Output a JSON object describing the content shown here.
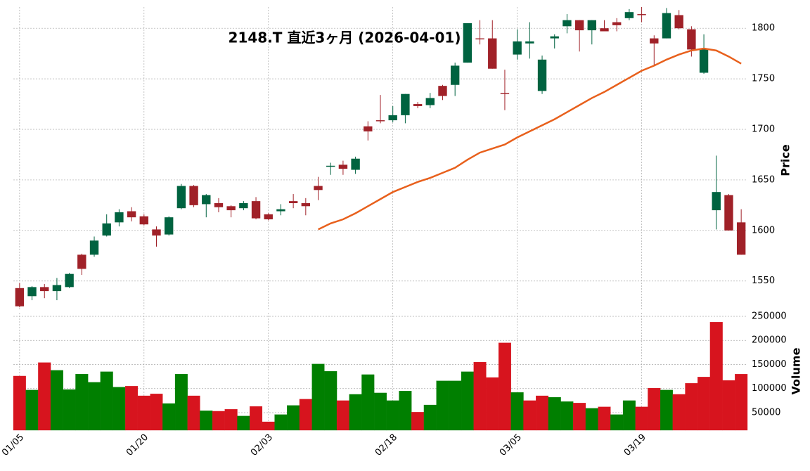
{
  "chart_data": {
    "type": "candlestick",
    "title": "2148.T 直近3ヶ月 (2026-04-01)",
    "ylabel": "Price",
    "categories": [
      "01/05",
      null,
      null,
      null,
      null,
      null,
      null,
      null,
      null,
      null,
      "01/20",
      null,
      null,
      null,
      null,
      null,
      null,
      null,
      null,
      null,
      "02/03",
      null,
      null,
      null,
      null,
      null,
      null,
      null,
      null,
      null,
      "02/18",
      null,
      null,
      null,
      null,
      null,
      null,
      null,
      null,
      null,
      "03/05",
      null,
      null,
      null,
      null,
      null,
      null,
      null,
      null,
      null,
      "03/19",
      null,
      null,
      null,
      null,
      null,
      null,
      null,
      null
    ],
    "open": [
      1543,
      1535,
      1544,
      1540,
      1544,
      1576,
      1576,
      1595,
      1608,
      1619,
      1614,
      1601,
      1596,
      1622,
      1644,
      1626,
      1627,
      1624,
      1622,
      1629,
      1616,
      1619,
      1629,
      1627,
      1644,
      1663,
      1665,
      1660,
      1703,
      1709,
      1709,
      1714,
      1725,
      1724,
      1743,
      1744,
      1766,
      1790,
      1790,
      1736,
      1774,
      1785,
      1738,
      1790,
      1802,
      1808,
      1798,
      1800,
      1806,
      1810,
      1814,
      1790,
      1790,
      1813,
      1799,
      1756,
      1620,
      1635,
      1608
    ],
    "high": [
      1548,
      1545,
      1547,
      1553,
      1558,
      1577,
      1594,
      1616,
      1621,
      1623,
      1616,
      1604,
      1614,
      1646,
      1645,
      1636,
      1632,
      1625,
      1629,
      1633,
      1617,
      1626,
      1636,
      1632,
      1653,
      1667,
      1669,
      1673,
      1708,
      1734,
      1723,
      1735,
      1727,
      1736,
      1744,
      1766,
      1805,
      1808,
      1808,
      1759,
      1799,
      1806,
      1773,
      1794,
      1814,
      1808,
      1808,
      1808,
      1810,
      1819,
      1821,
      1793,
      1820,
      1818,
      1802,
      1794,
      1674,
      1636,
      1621
    ],
    "low": [
      1524,
      1531,
      1533,
      1531,
      1543,
      1556,
      1574,
      1594,
      1604,
      1609,
      1605,
      1584,
      1595,
      1621,
      1623,
      1613,
      1618,
      1613,
      1620,
      1611,
      1610,
      1615,
      1622,
      1615,
      1630,
      1655,
      1655,
      1656,
      1689,
      1706,
      1707,
      1706,
      1721,
      1721,
      1729,
      1733,
      1766,
      1784,
      1760,
      1719,
      1769,
      1770,
      1735,
      1780,
      1795,
      1777,
      1784,
      1797,
      1797,
      1808,
      1806,
      1764,
      1790,
      1799,
      1772,
      1755,
      1601,
      1600,
      1576
    ],
    "close": [
      1525,
      1544,
      1540,
      1546,
      1557,
      1562,
      1590,
      1607,
      1618,
      1613,
      1606,
      1595,
      1613,
      1644,
      1625,
      1635,
      1623,
      1620,
      1627,
      1612,
      1611,
      1621,
      1627,
      1624,
      1640,
      1664,
      1661,
      1671,
      1698,
      1708,
      1714,
      1735,
      1723,
      1731,
      1733,
      1763,
      1805,
      1789,
      1760,
      1735,
      1787,
      1787,
      1769,
      1792,
      1808,
      1798,
      1808,
      1797,
      1803,
      1816,
      1813,
      1785,
      1815,
      1800,
      1779,
      1779,
      1638,
      1600,
      1576
    ],
    "up_color": "#006340",
    "down_color": "#a02128",
    "ma": {
      "color": "#e8601c",
      "values": [
        null,
        null,
        null,
        null,
        null,
        null,
        null,
        null,
        null,
        null,
        null,
        null,
        null,
        null,
        null,
        null,
        null,
        null,
        null,
        null,
        null,
        null,
        null,
        null,
        1601,
        1607,
        1611,
        1617,
        1624,
        1631,
        1638,
        1643,
        1648,
        1652,
        1657,
        1662,
        1670,
        1677,
        1681,
        1685,
        1692,
        1698,
        1704,
        1710,
        1717,
        1724,
        1731,
        1737,
        1744,
        1751,
        1758,
        1763,
        1769,
        1774,
        1778,
        1780,
        1778,
        1772,
        1765
      ]
    },
    "ylim": [
      1522,
      1821
    ],
    "yticks": [
      1550,
      1600,
      1650,
      1700,
      1750,
      1800
    ],
    "grid": true,
    "volume": {
      "ylabel": "Volume",
      "ylim": [
        13500,
        250000
      ],
      "yticks": [
        50000,
        100000,
        150000,
        200000,
        250000
      ],
      "values": [
        126000,
        97000,
        154000,
        138000,
        98000,
        130000,
        113000,
        135000,
        103000,
        105000,
        85000,
        89000,
        69000,
        130000,
        85000,
        54000,
        53000,
        57000,
        43000,
        63000,
        31000,
        46000,
        65000,
        78000,
        151000,
        136000,
        75000,
        88000,
        129000,
        91000,
        75000,
        95000,
        51000,
        66000,
        116000,
        116000,
        135000,
        155000,
        123000,
        195000,
        92000,
        75000,
        85000,
        82000,
        73000,
        70000,
        59000,
        62000,
        46000,
        75000,
        62000,
        101000,
        97000,
        88000,
        111000,
        124000,
        238000,
        117000,
        130000
      ],
      "colors": [
        "#d7141e",
        "#007f00",
        "#d7141e",
        "#007f00",
        "#007f00",
        "#007f00",
        "#007f00",
        "#007f00",
        "#007f00",
        "#d7141e",
        "#d7141e",
        "#d7141e",
        "#007f00",
        "#007f00",
        "#d7141e",
        "#007f00",
        "#d7141e",
        "#d7141e",
        "#007f00",
        "#d7141e",
        "#d7141e",
        "#007f00",
        "#007f00",
        "#d7141e",
        "#007f00",
        "#007f00",
        "#d7141e",
        "#007f00",
        "#007f00",
        "#007f00",
        "#007f00",
        "#007f00",
        "#d7141e",
        "#007f00",
        "#007f00",
        "#007f00",
        "#007f00",
        "#d7141e",
        "#d7141e",
        "#d7141e",
        "#007f00",
        "#d7141e",
        "#d7141e",
        "#007f00",
        "#007f00",
        "#d7141e",
        "#007f00",
        "#d7141e",
        "#007f00",
        "#007f00",
        "#d7141e",
        "#d7141e",
        "#007f00",
        "#d7141e",
        "#d7141e",
        "#d7141e",
        "#d7141e",
        "#d7141e",
        "#d7141e"
      ]
    }
  }
}
